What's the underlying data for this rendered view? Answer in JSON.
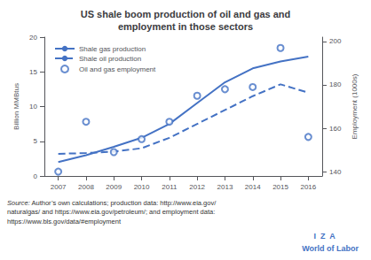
{
  "chart_data": {
    "type": "line",
    "title": "US shale boom production of oil and gas and\nemployment in those sectors",
    "x": [
      2007,
      2008,
      2009,
      2010,
      2011,
      2012,
      2013,
      2014,
      2015,
      2016
    ],
    "xlim": [
      2006.5,
      2016.5
    ],
    "xticks": [
      2007,
      2008,
      2009,
      2010,
      2011,
      2012,
      2013,
      2014,
      2015,
      2016
    ],
    "ylim": [
      0,
      20
    ],
    "yticks": [
      0,
      5,
      10,
      15,
      20
    ],
    "y2lim": [
      138,
      202
    ],
    "y2ticks": [
      140,
      160,
      180,
      200
    ],
    "ylabel": "Billion MMBtus",
    "y2label": "Employment (1000s)",
    "series": [
      {
        "name": "Shale gas production",
        "type": "line",
        "color": "#4472C4",
        "line_style": "solid",
        "values": [
          2.0,
          3.0,
          4.2,
          5.5,
          7.5,
          10.5,
          13.5,
          15.5,
          16.5,
          17.2
        ]
      },
      {
        "name": "Shale oil production",
        "type": "line",
        "color": "#4472C4",
        "line_style": "dashed",
        "values": [
          3.2,
          3.3,
          3.5,
          4.0,
          5.5,
          7.5,
          9.5,
          11.5,
          13.2,
          12.0
        ]
      },
      {
        "name": "Oil and gas employment",
        "type": "scatter",
        "axis": "y2",
        "color": "#4472C4",
        "marker": "hollow_circle",
        "values": [
          140,
          163,
          149,
          155,
          163,
          175,
          178,
          179,
          197,
          156
        ]
      }
    ],
    "legend": "upper left",
    "grid": false,
    "annotations": [
      "Source:",
      " Author’s own calculations; production data: http://www.eia.gov/\nnaturalgas/ and https://www.eia.gov/petroleum/; and employment data:\nhttps://www.bls.gov/data/#employment",
      "I  Z  A",
      "World of Labor"
    ]
  }
}
